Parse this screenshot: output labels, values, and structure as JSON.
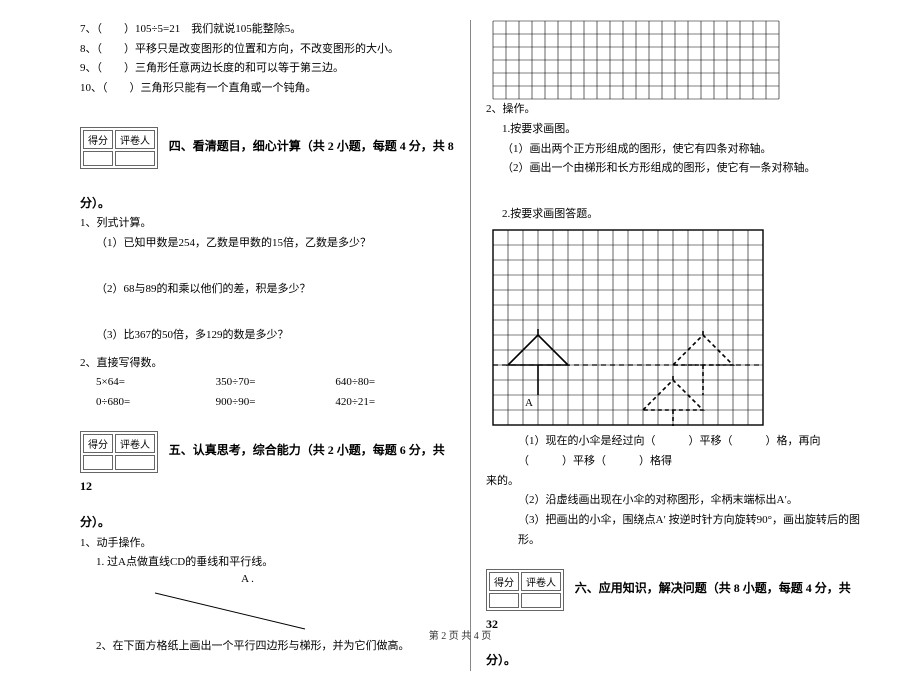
{
  "left": {
    "judgments": [
      "7、（　　）105÷5=21　我们就说105能整除5。",
      "8、（　　）平移只是改变图形的位置和方向，不改变图形的大小。",
      "9、（　　）三角形任意两边长度的和可以等于第三边。",
      "10、（　　）三角形只能有一个直角或一个钝角。"
    ],
    "scorebox": {
      "h1": "得分",
      "h2": "评卷人"
    },
    "sec4": {
      "title": "四、看清题目，细心计算（共 2 小题，每题 4 分，共 8",
      "title_tail": "分）。",
      "q1": "1、列式计算。",
      "q1a": "（1）已知甲数是254，乙数是甲数的15倍，乙数是多少？",
      "q1b": "（2）68与89的和乘以他们的差，积是多少？",
      "q1c": "（3）比367的50倍，多129的数是多少？",
      "q2": "2、直接写得数。",
      "calc": [
        [
          "5×64=",
          "350÷70=",
          "640÷80="
        ],
        [
          "0÷680=",
          "900÷90=",
          "420÷21="
        ]
      ]
    },
    "sec5": {
      "title": "五、认真思考，综合能力（共 2 小题，每题 6 分，共 12",
      "title_tail": "分）。",
      "q1": "1、动手操作。",
      "q1a": "1. 过A点做直线CD的垂线和平行线。",
      "pointA": "A .",
      "q2": "2、在下面方格纸上画出一个平行四边形与梯形，并为它们做高。"
    }
  },
  "right": {
    "grid1": {
      "rows": 6,
      "cols": 22,
      "cell": 13
    },
    "q2": "2、操作。",
    "q2_1": "1.按要求画图。",
    "q2_1a": "（1）画出两个正方形组成的图形，使它有四条对称轴。",
    "q2_1b": "（2）画出一个由梯形和长方形组成的图形，使它有一条对称轴。",
    "q2_2": "2.按要求画图答题。",
    "grid2": {
      "rows": 13,
      "cols": 18,
      "cell": 15
    },
    "umbrella": {
      "c1": 3,
      "r1": 9,
      "c2": 14,
      "r2": 9,
      "c3": 12,
      "r3": 12,
      "labelA": "A"
    },
    "q2_2a": "（1）现在的小伞是经过向（　　　）平移（　　　）格，再向（　　　）平移（　　　）格得",
    "q2_2a_tail": "来的。",
    "q2_2b": "（2）沿虚线画出现在小伞的对称图形，伞柄末端标出A′。",
    "q2_2c": "（3）把画出的小伞，围绕点A′ 按逆时针方向旋转90°，画出旋转后的图形。",
    "scorebox": {
      "h1": "得分",
      "h2": "评卷人"
    },
    "sec6": {
      "title": "六、应用知识，解决问题（共 8 小题，每题 4 分，共 32",
      "title_tail": "分）。"
    }
  },
  "footer": "第 2 页 共 4 页"
}
